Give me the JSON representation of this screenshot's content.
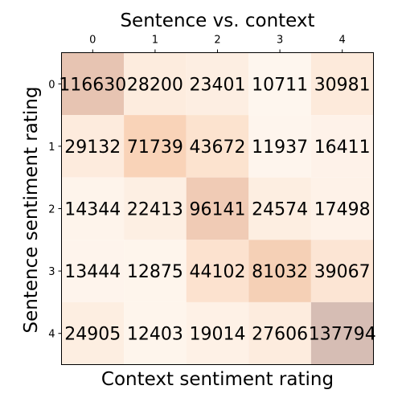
{
  "chart_data": {
    "type": "heatmap",
    "title": "Sentence vs. context",
    "xlabel": "Context sentiment rating",
    "ylabel": "Sentence sentiment rating",
    "x_ticks": [
      "0",
      "1",
      "2",
      "3",
      "4"
    ],
    "y_ticks": [
      "0",
      "1",
      "2",
      "3",
      "4"
    ],
    "x_tick_position": "top",
    "values": [
      [
        116630,
        28200,
        23401,
        10711,
        30981
      ],
      [
        29132,
        71739,
        43672,
        11937,
        16411
      ],
      [
        14344,
        22413,
        96141,
        24574,
        17498
      ],
      [
        13444,
        12875,
        44102,
        81032,
        39067
      ],
      [
        24905,
        12403,
        19014,
        27606,
        137794
      ]
    ],
    "colormap": "light peach to brown"
  }
}
